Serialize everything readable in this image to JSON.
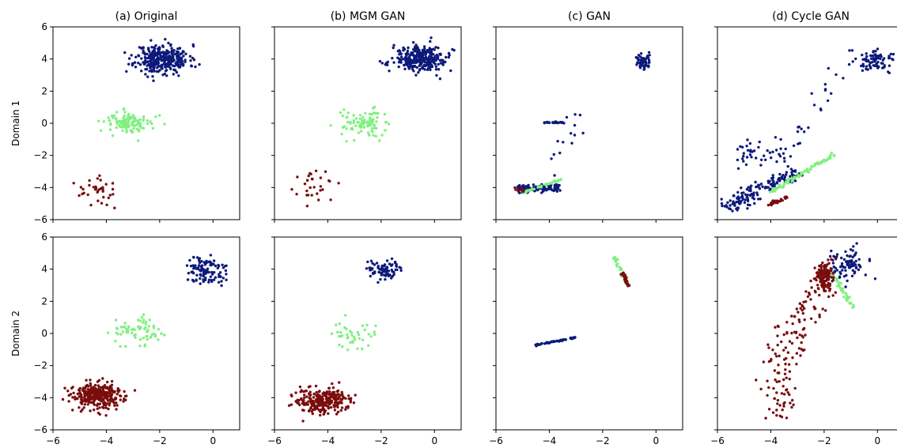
{
  "colors": {
    "domain1_cluster": "#0d1a7a",
    "domain2_cluster": "#7a0d0d",
    "shared_cluster": "#80f080"
  },
  "row_labels": [
    "Domain 1",
    "Domain 2"
  ],
  "chart_data": [
    {
      "type": "scatter",
      "title": "(a) Original",
      "row_label": "Domain 1",
      "xlim": [
        -6,
        1
      ],
      "ylim": [
        -6,
        6
      ],
      "xticks": [
        "−6",
        "−4",
        "−2",
        "0"
      ],
      "yticks": [
        "−6",
        "−4",
        "−2",
        "0",
        "2",
        "4",
        "6"
      ],
      "series": [
        {
          "color": "#0d1a7a",
          "n": 320,
          "kind": "blob",
          "cx": -1.9,
          "cy": 4.0,
          "sx": 0.5,
          "sy": 0.45,
          "seed": 11
        },
        {
          "color": "#80f080",
          "n": 110,
          "kind": "blob",
          "cx": -3.1,
          "cy": 0.0,
          "sx": 0.45,
          "sy": 0.35,
          "seed": 12
        },
        {
          "color": "#7a0d0d",
          "n": 35,
          "kind": "blob",
          "cx": -4.3,
          "cy": -4.2,
          "sx": 0.4,
          "sy": 0.45,
          "seed": 13
        }
      ]
    },
    {
      "type": "scatter",
      "title": "(b) MGM GAN",
      "row_label": "",
      "xlim": [
        -6,
        1
      ],
      "ylim": [
        -6,
        6
      ],
      "xticks": [
        "−6",
        "−4",
        "−2",
        "0"
      ],
      "yticks": [],
      "series": [
        {
          "color": "#0d1a7a",
          "n": 300,
          "kind": "blob",
          "cx": -0.5,
          "cy": 4.0,
          "sx": 0.5,
          "sy": 0.4,
          "seed": 21
        },
        {
          "color": "#80f080",
          "n": 90,
          "kind": "blob",
          "cx": -2.7,
          "cy": 0.0,
          "sx": 0.4,
          "sy": 0.4,
          "seed": 22
        },
        {
          "color": "#7a0d0d",
          "n": 30,
          "kind": "blob",
          "cx": -4.4,
          "cy": -4.0,
          "sx": 0.35,
          "sy": 0.45,
          "seed": 23
        }
      ]
    },
    {
      "type": "scatter",
      "title": "(c) GAN",
      "row_label": "",
      "xlim": [
        -6,
        1
      ],
      "ylim": [
        -6,
        6
      ],
      "xticks": [
        "−6",
        "−4",
        "−2",
        "0"
      ],
      "yticks": [],
      "series": [
        {
          "color": "#0d1a7a",
          "n": 60,
          "kind": "blob",
          "cx": -0.5,
          "cy": 3.8,
          "sx": 0.15,
          "sy": 0.25,
          "seed": 31
        },
        {
          "color": "#0d1a7a",
          "n": 30,
          "kind": "line",
          "x1": -4.2,
          "y1": 0.05,
          "x2": -3.4,
          "y2": 0.05,
          "w": 0.05,
          "seed": 32
        },
        {
          "color": "#0d1a7a",
          "n": 120,
          "kind": "line",
          "x1": -5.2,
          "y1": -4.1,
          "x2": -3.6,
          "y2": -4.0,
          "w": 0.25,
          "seed": 33
        },
        {
          "color": "#0d1a7a",
          "n": 14,
          "kind": "line",
          "x1": -4.0,
          "y1": -3.2,
          "x2": -2.8,
          "y2": 0.5,
          "w": 0.4,
          "seed": 34
        },
        {
          "color": "#80f080",
          "n": 40,
          "kind": "line",
          "x1": -5.0,
          "y1": -4.3,
          "x2": -3.5,
          "y2": -3.5,
          "w": 0.08,
          "seed": 35
        },
        {
          "color": "#7a0d0d",
          "n": 8,
          "kind": "blob",
          "cx": -5.1,
          "cy": -4.1,
          "sx": 0.12,
          "sy": 0.08,
          "seed": 36
        }
      ]
    },
    {
      "type": "scatter",
      "title": "(d) Cycle GAN",
      "row_label": "",
      "xlim": [
        -6,
        1
      ],
      "ylim": [
        -6,
        6
      ],
      "xticks": [
        "−6",
        "−4",
        "−2",
        "0"
      ],
      "yticks": [],
      "series": [
        {
          "color": "#0d1a7a",
          "n": 80,
          "kind": "blob",
          "cx": 0.0,
          "cy": 3.9,
          "sx": 0.35,
          "sy": 0.3,
          "seed": 41
        },
        {
          "color": "#0d1a7a",
          "n": 150,
          "kind": "line",
          "x1": -5.8,
          "y1": -5.3,
          "x2": -3.0,
          "y2": -3.0,
          "w": 0.5,
          "seed": 42
        },
        {
          "color": "#0d1a7a",
          "n": 30,
          "kind": "line",
          "x1": -3.6,
          "y1": -2.0,
          "x2": -0.8,
          "y2": 4.6,
          "w": 0.6,
          "seed": 43
        },
        {
          "color": "#0d1a7a",
          "n": 40,
          "kind": "line",
          "x1": -5.2,
          "y1": -1.5,
          "x2": -3.5,
          "y2": -2.5,
          "w": 0.9,
          "seed": 44
        },
        {
          "color": "#80f080",
          "n": 90,
          "kind": "line",
          "x1": -4.0,
          "y1": -4.3,
          "x2": -1.6,
          "y2": -1.9,
          "w": 0.12,
          "seed": 45
        },
        {
          "color": "#7a0d0d",
          "n": 25,
          "kind": "line",
          "x1": -4.1,
          "y1": -5.1,
          "x2": -3.4,
          "y2": -4.6,
          "w": 0.1,
          "seed": 46
        }
      ]
    },
    {
      "type": "scatter",
      "title": "",
      "row_label": "Domain 2",
      "xlim": [
        -6,
        1
      ],
      "ylim": [
        -6,
        6
      ],
      "xticks": [
        "−6",
        "−4",
        "−2",
        "0"
      ],
      "yticks": [
        "−6",
        "−4",
        "−2",
        "0",
        "2",
        "4",
        "6"
      ],
      "series": [
        {
          "color": "#0d1a7a",
          "n": 110,
          "kind": "blob",
          "cx": -0.3,
          "cy": 3.9,
          "sx": 0.4,
          "sy": 0.45,
          "seed": 51
        },
        {
          "color": "#80f080",
          "n": 70,
          "kind": "blob",
          "cx": -2.8,
          "cy": 0.1,
          "sx": 0.45,
          "sy": 0.45,
          "seed": 52
        },
        {
          "color": "#7a0d0d",
          "n": 320,
          "kind": "blob",
          "cx": -4.3,
          "cy": -3.9,
          "sx": 0.5,
          "sy": 0.4,
          "seed": 53
        }
      ]
    },
    {
      "type": "scatter",
      "title": "",
      "row_label": "",
      "xlim": [
        -6,
        1
      ],
      "ylim": [
        -6,
        6
      ],
      "xticks": [
        "−6",
        "−4",
        "−2",
        "0"
      ],
      "yticks": [],
      "series": [
        {
          "color": "#0d1a7a",
          "n": 80,
          "kind": "blob",
          "cx": -1.9,
          "cy": 4.0,
          "sx": 0.35,
          "sy": 0.35,
          "seed": 61
        },
        {
          "color": "#80f080",
          "n": 40,
          "kind": "blob",
          "cx": -3.0,
          "cy": -0.1,
          "sx": 0.35,
          "sy": 0.4,
          "seed": 62
        },
        {
          "color": "#7a0d0d",
          "n": 280,
          "kind": "blob",
          "cx": -4.2,
          "cy": -4.2,
          "sx": 0.45,
          "sy": 0.38,
          "seed": 63
        }
      ]
    },
    {
      "type": "scatter",
      "title": "",
      "row_label": "",
      "xlim": [
        -6,
        1
      ],
      "ylim": [
        -6,
        6
      ],
      "xticks": [
        "−6",
        "−4",
        "−2",
        "0"
      ],
      "yticks": [],
      "series": [
        {
          "color": "#0d1a7a",
          "n": 60,
          "kind": "line",
          "x1": -4.6,
          "y1": -0.75,
          "x2": -3.0,
          "y2": -0.25,
          "w": 0.05,
          "seed": 71
        },
        {
          "color": "#80f080",
          "n": 35,
          "kind": "line",
          "x1": -1.6,
          "y1": 4.8,
          "x2": -1.05,
          "y2": 3.0,
          "w": 0.08,
          "seed": 72
        },
        {
          "color": "#7a0d0d",
          "n": 30,
          "kind": "line",
          "x1": -1.25,
          "y1": 3.8,
          "x2": -1.0,
          "y2": 2.9,
          "w": 0.07,
          "seed": 73
        }
      ]
    },
    {
      "type": "scatter",
      "title": "",
      "row_label": "",
      "xlim": [
        -6,
        1
      ],
      "ylim": [
        -6,
        6
      ],
      "xticks": [
        "−6",
        "−4",
        "−2",
        "0"
      ],
      "yticks": [],
      "series": [
        {
          "color": "#0d1a7a",
          "n": 90,
          "kind": "blob",
          "cx": -1.2,
          "cy": 4.3,
          "sx": 0.35,
          "sy": 0.55,
          "seed": 81
        },
        {
          "color": "#80f080",
          "n": 40,
          "kind": "line",
          "x1": -1.7,
          "y1": 3.7,
          "x2": -0.9,
          "y2": 1.6,
          "w": 0.08,
          "seed": 82
        },
        {
          "color": "#7a0d0d",
          "n": 120,
          "kind": "blob",
          "cx": -2.0,
          "cy": 3.5,
          "sx": 0.18,
          "sy": 0.45,
          "seed": 83
        },
        {
          "color": "#7a0d0d",
          "n": 140,
          "kind": "curve",
          "seed": 84
        }
      ]
    }
  ]
}
